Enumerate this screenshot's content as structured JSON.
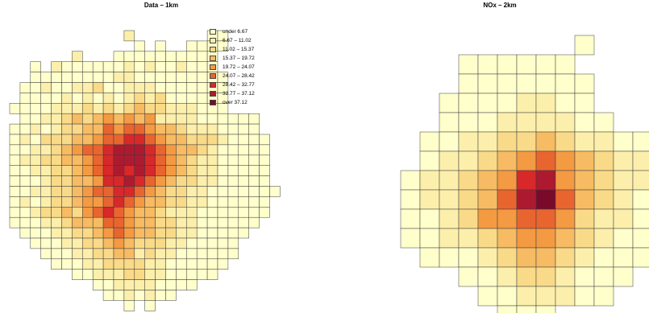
{
  "panels": [
    {
      "id": "left",
      "title": "Data – 1km"
    },
    {
      "id": "right",
      "title": "NOx – 2km"
    }
  ],
  "legend": [
    {
      "label": "under 6.67",
      "color": "#FFFFCC"
    },
    {
      "label": "6.67 – 11.02",
      "color": "#FCEFAB"
    },
    {
      "label": "11.02 – 15.37",
      "color": "#F9DA88"
    },
    {
      "label": "15.37 – 19.72",
      "color": "#F6BB63"
    },
    {
      "label": "19.72 – 24.07",
      "color": "#F39A43"
    },
    {
      "label": "24.07 – 28.42",
      "color": "#E9652F"
    },
    {
      "label": "28.42 – 32.77",
      "color": "#D8282A"
    },
    {
      "label": "32.77 – 37.12",
      "color": "#AD1A30"
    },
    {
      "label": "over 37.12",
      "color": "#7A0A2A"
    }
  ],
  "maps": {
    "left": {
      "rows": [
        "...........2.......11.....",
        "............1.1..1111.....",
        "......2...1111111111......",
        "..1.2111111212112111......",
        "..1111111122111111111.....",
        ".11211223112221111111.....",
        ".11112121212323111111.....",
        "111122232323433222111.....",
        ".11223434545452222111111..",
        "112123344656654432221111..",
        "1213334456677654433321111.",
        "1122345667888765443211111.",
        "1223344567888765432211111.",
        "1122334567878765432211111.",
        "1112334457787654332211111.",
        "11223345667765433221111111",
        "1212334556765443322111111.",
        "1123343567654432221111111.",
        "111223444665443322111111..",
        ".1112233456544332211111...",
        "..11122334543332211111....",
        "...1112233442322111111....",
        "....11122333322111111.....",
        "......11222332211111......",
        "........1122221111........",
        ".........1121211..........",
        "...........1.1............"
      ]
    },
    "right": {
      "rows": [
        ".........1....",
        "...111111.....",
        "...1111111....",
        "..11112211....",
        "..111222211...",
        ".1122334322111",
        ".1223456543221",
        "1223457854322.",
        "1223468964321.",
        "1123556653221.",
        "1122345543211.",
        ".111234432111.",
        "...112332111..",
        "....1122211...",
        ".....111......"
      ]
    }
  }
}
